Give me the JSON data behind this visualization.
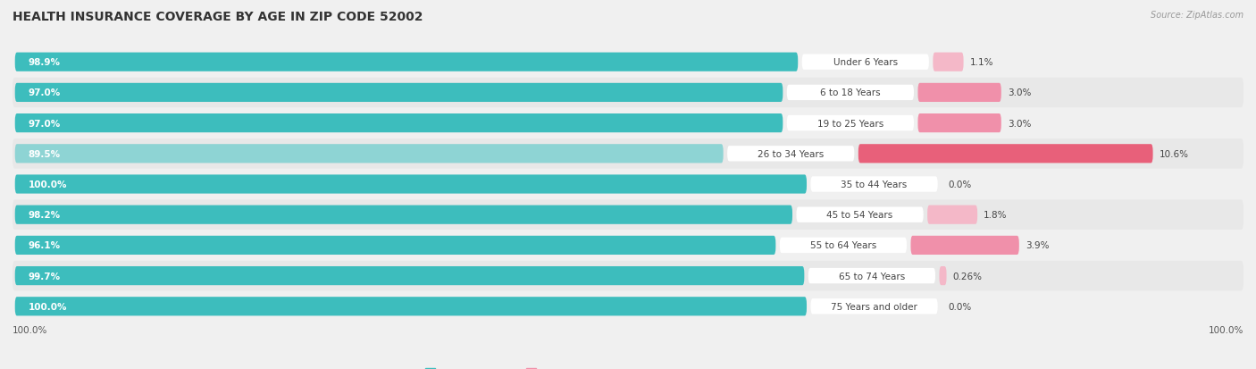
{
  "title": "HEALTH INSURANCE COVERAGE BY AGE IN ZIP CODE 52002",
  "source": "Source: ZipAtlas.com",
  "categories": [
    "Under 6 Years",
    "6 to 18 Years",
    "19 to 25 Years",
    "26 to 34 Years",
    "35 to 44 Years",
    "45 to 54 Years",
    "55 to 64 Years",
    "65 to 74 Years",
    "75 Years and older"
  ],
  "with_coverage": [
    98.9,
    97.0,
    97.0,
    89.5,
    100.0,
    98.2,
    96.1,
    99.7,
    100.0
  ],
  "without_coverage": [
    1.1,
    3.0,
    3.0,
    10.6,
    0.0,
    1.8,
    3.9,
    0.26,
    0.0
  ],
  "with_labels": [
    "98.9%",
    "97.0%",
    "97.0%",
    "89.5%",
    "100.0%",
    "98.2%",
    "96.1%",
    "99.7%",
    "100.0%"
  ],
  "without_labels": [
    "1.1%",
    "3.0%",
    "3.0%",
    "10.6%",
    "0.0%",
    "1.8%",
    "3.9%",
    "0.26%",
    "0.0%"
  ],
  "color_with": "#3dbdbd",
  "color_without_strong": "#e8607a",
  "color_without_medium": "#f090aa",
  "color_without_light": "#f4b8c8",
  "color_with_light": "#8ed4d4",
  "row_bg_even": "#f0f0f0",
  "row_bg_odd": "#e8e8e8",
  "title_fontsize": 10,
  "source_fontsize": 7,
  "label_fontsize": 7.5,
  "bar_height": 0.62,
  "total_width": 155
}
